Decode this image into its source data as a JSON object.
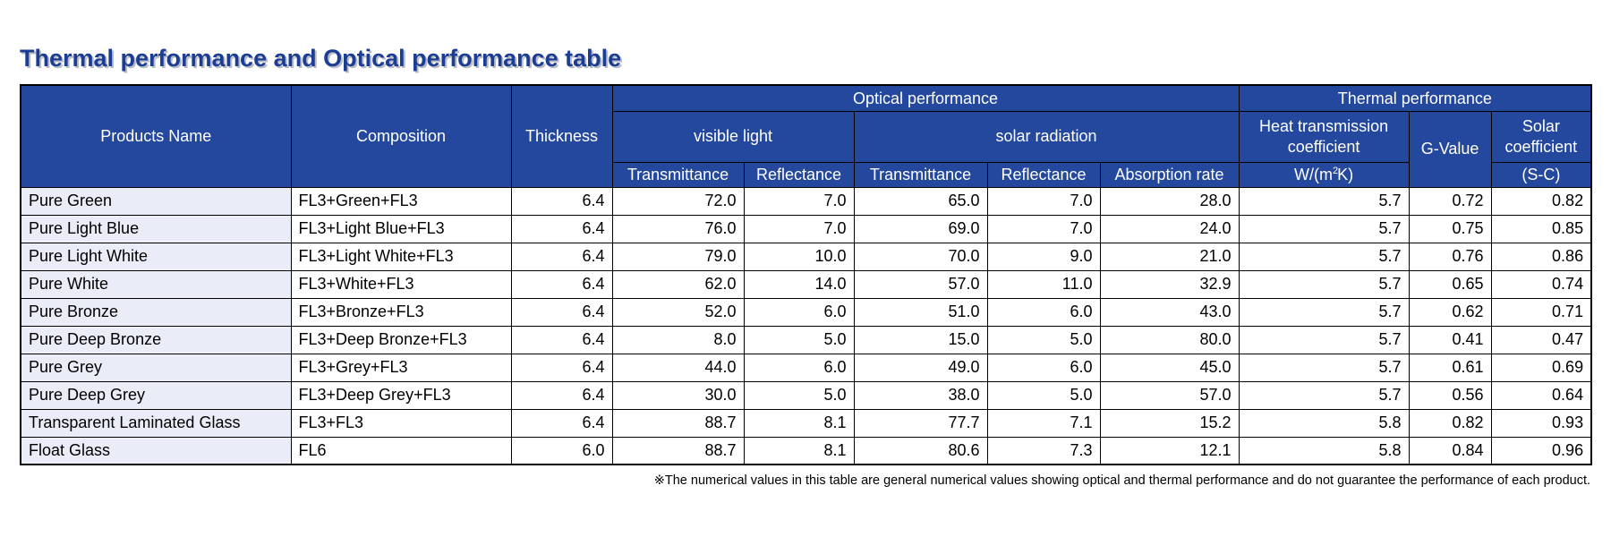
{
  "title": "Thermal performance and Optical performance table",
  "colors": {
    "header_blue": "#24489E",
    "row_label_bg": "#EAEDF8",
    "title_blue": "#1B3E94",
    "border_black": "#000000"
  },
  "table": {
    "headers": {
      "products_name": "Products Name",
      "composition": "Composition",
      "thickness": "Thickness",
      "optical_performance": "Optical performance",
      "thermal_performance": "Thermal performance",
      "visible_light": "visible light",
      "solar_radiation": "solar radiation",
      "transmittance": "Transmittance",
      "reflectance": "Reflectance",
      "absorption_rate": "Absorption rate",
      "heat_transmission_coefficient": "Heat transmission coefficient",
      "heat_unit_prefix": "W/(m",
      "heat_unit_sup": "2",
      "heat_unit_suffix": "K)",
      "g_value": "G-Value",
      "solar_coefficient": "Solar coefficient",
      "solar_coefficient_unit": "(S-C)"
    },
    "col_names": [
      "product-name-cell",
      "composition-cell",
      "thickness-cell",
      "visible-transmittance-cell",
      "visible-reflectance-cell",
      "solar-transmittance-cell",
      "solar-reflectance-cell",
      "absorption-rate-cell",
      "heat-transmission-cell",
      "g-value-cell",
      "solar-coefficient-cell"
    ],
    "rows": [
      [
        "Pure Green",
        "FL3+Green+FL3",
        "6.4",
        "72.0",
        "7.0",
        "65.0",
        "7.0",
        "28.0",
        "5.7",
        "0.72",
        "0.82"
      ],
      [
        "Pure Light Blue",
        "FL3+Light Blue+FL3",
        "6.4",
        "76.0",
        "7.0",
        "69.0",
        "7.0",
        "24.0",
        "5.7",
        "0.75",
        "0.85"
      ],
      [
        "Pure Light White",
        "FL3+Light White+FL3",
        "6.4",
        "79.0",
        "10.0",
        "70.0",
        "9.0",
        "21.0",
        "5.7",
        "0.76",
        "0.86"
      ],
      [
        "Pure White",
        "FL3+White+FL3",
        "6.4",
        "62.0",
        "14.0",
        "57.0",
        "11.0",
        "32.9",
        "5.7",
        "0.65",
        "0.74"
      ],
      [
        "Pure Bronze",
        "FL3+Bronze+FL3",
        "6.4",
        "52.0",
        "6.0",
        "51.0",
        "6.0",
        "43.0",
        "5.7",
        "0.62",
        "0.71"
      ],
      [
        "Pure Deep Bronze",
        "FL3+Deep Bronze+FL3",
        "6.4",
        "8.0",
        "5.0",
        "15.0",
        "5.0",
        "80.0",
        "5.7",
        "0.41",
        "0.47"
      ],
      [
        "Pure Grey",
        "FL3+Grey+FL3",
        "6.4",
        "44.0",
        "6.0",
        "49.0",
        "6.0",
        "45.0",
        "5.7",
        "0.61",
        "0.69"
      ],
      [
        "Pure Deep Grey",
        "FL3+Deep Grey+FL3",
        "6.4",
        "30.0",
        "5.0",
        "38.0",
        "5.0",
        "57.0",
        "5.7",
        "0.56",
        "0.64"
      ],
      [
        "Transparent Laminated Glass",
        "FL3+FL3",
        "6.4",
        "88.7",
        "8.1",
        "77.7",
        "7.1",
        "15.2",
        "5.8",
        "0.82",
        "0.93"
      ],
      [
        "Float Glass",
        "FL6",
        "6.0",
        "88.7",
        "8.1",
        "80.6",
        "7.3",
        "12.1",
        "5.8",
        "0.84",
        "0.96"
      ]
    ]
  },
  "footnote": "※The numerical values in this table are general numerical values showing optical and thermal performance and do not guarantee the performance of each product."
}
